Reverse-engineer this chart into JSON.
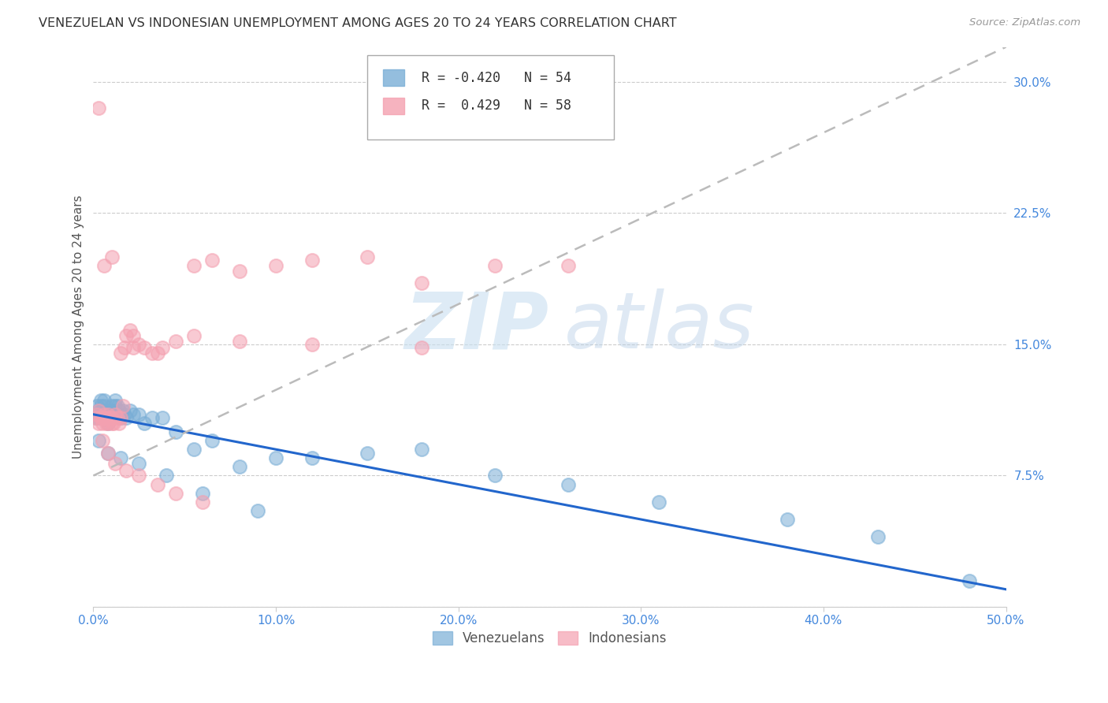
{
  "title": "VENEZUELAN VS INDONESIAN UNEMPLOYMENT AMONG AGES 20 TO 24 YEARS CORRELATION CHART",
  "source": "Source: ZipAtlas.com",
  "ylabel": "Unemployment Among Ages 20 to 24 years",
  "xlim": [
    0.0,
    0.5
  ],
  "ylim": [
    0.0,
    0.32
  ],
  "grid_color": "#cccccc",
  "background_color": "#ffffff",
  "venezuelan_color": "#7aaed6",
  "indonesian_color": "#f4a0b0",
  "venezuelan_line_color": "#2266cc",
  "indonesian_line_color": "#bbbbbb",
  "venezuelan_R": -0.42,
  "venezuelan_N": 54,
  "indonesian_R": 0.429,
  "indonesian_N": 58,
  "legend_label_venezuelan": "Venezuelans",
  "legend_label_indonesian": "Indonesians",
  "venezuelan_x": [
    0.001,
    0.002,
    0.002,
    0.003,
    0.003,
    0.004,
    0.004,
    0.005,
    0.005,
    0.006,
    0.006,
    0.007,
    0.007,
    0.008,
    0.008,
    0.009,
    0.01,
    0.01,
    0.011,
    0.012,
    0.012,
    0.013,
    0.014,
    0.015,
    0.016,
    0.017,
    0.018,
    0.02,
    0.022,
    0.025,
    0.028,
    0.032,
    0.038,
    0.045,
    0.055,
    0.065,
    0.08,
    0.1,
    0.12,
    0.15,
    0.18,
    0.22,
    0.26,
    0.31,
    0.38,
    0.43,
    0.48,
    0.003,
    0.008,
    0.015,
    0.025,
    0.04,
    0.06,
    0.09
  ],
  "venezuelan_y": [
    0.108,
    0.11,
    0.115,
    0.108,
    0.112,
    0.115,
    0.118,
    0.108,
    0.112,
    0.115,
    0.118,
    0.11,
    0.112,
    0.108,
    0.105,
    0.112,
    0.11,
    0.115,
    0.112,
    0.115,
    0.118,
    0.115,
    0.112,
    0.108,
    0.112,
    0.11,
    0.108,
    0.112,
    0.11,
    0.11,
    0.105,
    0.108,
    0.108,
    0.1,
    0.09,
    0.095,
    0.08,
    0.085,
    0.085,
    0.088,
    0.09,
    0.075,
    0.07,
    0.06,
    0.05,
    0.04,
    0.015,
    0.095,
    0.088,
    0.085,
    0.082,
    0.075,
    0.065,
    0.055
  ],
  "indonesian_x": [
    0.001,
    0.002,
    0.003,
    0.003,
    0.004,
    0.005,
    0.005,
    0.006,
    0.006,
    0.007,
    0.007,
    0.008,
    0.008,
    0.009,
    0.01,
    0.01,
    0.011,
    0.012,
    0.013,
    0.014,
    0.015,
    0.016,
    0.017,
    0.018,
    0.02,
    0.022,
    0.025,
    0.028,
    0.032,
    0.038,
    0.045,
    0.055,
    0.065,
    0.08,
    0.1,
    0.12,
    0.15,
    0.18,
    0.22,
    0.26,
    0.005,
    0.008,
    0.012,
    0.018,
    0.025,
    0.035,
    0.045,
    0.06,
    0.003,
    0.006,
    0.01,
    0.015,
    0.022,
    0.035,
    0.055,
    0.08,
    0.12,
    0.18
  ],
  "indonesian_y": [
    0.108,
    0.11,
    0.105,
    0.112,
    0.108,
    0.105,
    0.108,
    0.11,
    0.108,
    0.105,
    0.108,
    0.11,
    0.105,
    0.108,
    0.105,
    0.108,
    0.105,
    0.11,
    0.108,
    0.105,
    0.108,
    0.115,
    0.148,
    0.155,
    0.158,
    0.155,
    0.15,
    0.148,
    0.145,
    0.148,
    0.152,
    0.195,
    0.198,
    0.192,
    0.195,
    0.198,
    0.2,
    0.185,
    0.195,
    0.195,
    0.095,
    0.088,
    0.082,
    0.078,
    0.075,
    0.07,
    0.065,
    0.06,
    0.285,
    0.195,
    0.2,
    0.145,
    0.148,
    0.145,
    0.155,
    0.152,
    0.15,
    0.148
  ]
}
